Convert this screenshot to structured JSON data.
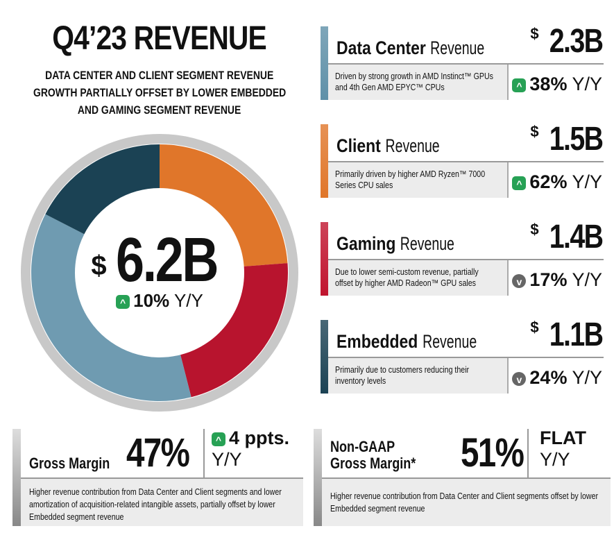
{
  "title": "Q4’23 REVENUE",
  "subtitle": [
    "DATA CENTER AND CLIENT SEGMENT REVENUE",
    "GROWTH PARTIALLY OFFSET BY LOWER EMBEDDED",
    "AND GAMING SEGMENT REVENUE"
  ],
  "total": {
    "currency": "$",
    "value": "6.2B",
    "change": "10%",
    "period": "Y/Y",
    "direction": "up"
  },
  "segments": [
    {
      "bold": "Data Center",
      "label": "Revenue",
      "currency": "$",
      "value": "2.3B",
      "desc": "Driven by strong growth in AMD Instinct™ GPUs and 4th Gen AMD EPYC™ CPUs",
      "change": "38%",
      "period": "Y/Y",
      "direction": "up",
      "color": "#5f90a8"
    },
    {
      "bold": "Client",
      "label": "Revenue",
      "currency": "$",
      "value": "1.5B",
      "desc": "Primarily driven by higher AMD Ryzen™ 7000 Series CPU sales",
      "change": "62%",
      "period": "Y/Y",
      "direction": "up",
      "color": "#e0762a"
    },
    {
      "bold": "Gaming",
      "label": "Revenue",
      "currency": "$",
      "value": "1.4B",
      "desc": "Due to lower semi-custom revenue, partially offset by higher AMD Radeon™ GPU sales",
      "change": "17%",
      "period": "Y/Y",
      "direction": "down",
      "color": "#c0142e"
    },
    {
      "bold": "Embedded",
      "label": "Revenue",
      "currency": "$",
      "value": "1.1B",
      "desc": "Primarily due to customers reducing their inventory levels",
      "change": "24%",
      "period": "Y/Y",
      "direction": "down",
      "color": "#1b4254"
    }
  ],
  "gross_margin": {
    "label": "Gross Margin",
    "value": "47%",
    "change": "4 ppts.",
    "period": "Y/Y",
    "direction": "up",
    "desc": "Higher revenue contribution from Data Center and Client segments and lower amortization of acquisition-related intangible assets, partially offset by lower Embedded segment revenue"
  },
  "non_gaap": {
    "label1": "Non-GAAP",
    "label2": "Gross Margin*",
    "value": "51%",
    "change": "FLAT",
    "period": "Y/Y",
    "desc": "Higher revenue contribution from Data Center and Client segments offset by lower Embedded segment revenue"
  },
  "chart_data": {
    "type": "pie",
    "variant": "donut",
    "categories": [
      "Client",
      "Gaming",
      "Data Center",
      "Embedded"
    ],
    "values": [
      1.5,
      1.4,
      2.3,
      1.1
    ],
    "unit": "$B",
    "colors": [
      "#e0762a",
      "#b8142e",
      "#6f9bb1",
      "#1b4254"
    ],
    "center_label": "$6.2B"
  }
}
